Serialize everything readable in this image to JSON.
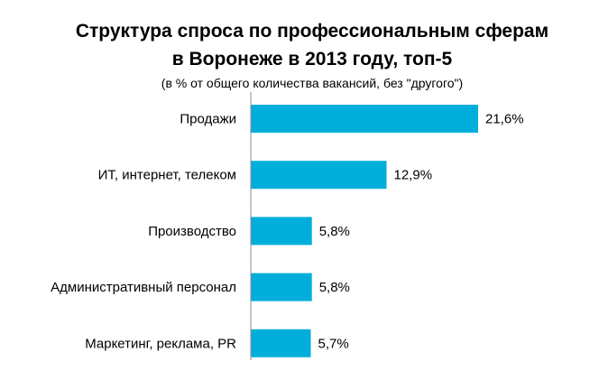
{
  "chart_data": {
    "type": "bar",
    "orientation": "horizontal",
    "title_lines": [
      "Структура спроса по профессиональным сферам",
      "в Воронеже в 2013 году, топ-5"
    ],
    "subtitle": "(в % от общего количества вакансий, без \"другого\")",
    "categories": [
      "Продажи",
      "ИТ, интернет, телеком",
      "Производство",
      "Административный персонал",
      "Маркетинг, реклама, PR"
    ],
    "values": [
      21.6,
      12.9,
      5.8,
      5.8,
      5.7
    ],
    "value_labels": [
      "21,6%",
      "12,9%",
      "5,8%",
      "5,8%",
      "5,7%"
    ],
    "xlim": [
      0,
      21.6
    ],
    "grid": false,
    "legend": "none",
    "bar_color": "#00AEDB"
  }
}
